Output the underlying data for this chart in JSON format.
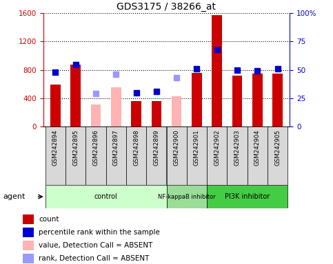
{
  "title": "GDS3175 / 38266_at",
  "samples": [
    "GSM242894",
    "GSM242895",
    "GSM242896",
    "GSM242897",
    "GSM242898",
    "GSM242899",
    "GSM242900",
    "GSM242901",
    "GSM242902",
    "GSM242903",
    "GSM242904",
    "GSM242905"
  ],
  "count_values": [
    590,
    880,
    null,
    null,
    360,
    365,
    null,
    760,
    1570,
    720,
    750,
    745
  ],
  "absent_value_bars": [
    null,
    null,
    310,
    560,
    null,
    null,
    430,
    null,
    null,
    null,
    null,
    null
  ],
  "rank_values_present": [
    48,
    55,
    null,
    null,
    30,
    31,
    null,
    51,
    68,
    50,
    49,
    51
  ],
  "rank_values_absent": [
    null,
    null,
    29,
    46,
    null,
    null,
    43,
    null,
    null,
    null,
    null,
    null
  ],
  "bar_color_present": "#cc0000",
  "bar_color_absent_value": "#ffb3b3",
  "dot_color_present": "#0000cc",
  "dot_color_absent_rank": "#9999ff",
  "ylim_left": [
    0,
    1600
  ],
  "ylim_right": [
    0,
    100
  ],
  "yticks_left": [
    0,
    400,
    800,
    1200,
    1600
  ],
  "yticks_right": [
    0,
    25,
    50,
    75,
    100
  ],
  "groups": [
    {
      "label": "control",
      "start": 0,
      "end": 6,
      "color": "#ccffcc"
    },
    {
      "label": "NF-kappaB inhibitor",
      "start": 6,
      "end": 8,
      "color": "#99dd99"
    },
    {
      "label": "PI3K inhibitor",
      "start": 8,
      "end": 12,
      "color": "#44cc44"
    }
  ],
  "legend_items": [
    {
      "label": "count",
      "color": "#cc0000"
    },
    {
      "label": "percentile rank within the sample",
      "color": "#0000cc"
    },
    {
      "label": "value, Detection Call = ABSENT",
      "color": "#ffb3b3"
    },
    {
      "label": "rank, Detection Call = ABSENT",
      "color": "#9999ff"
    }
  ],
  "agent_label": "agent",
  "left_axis_color": "#cc0000",
  "right_axis_color": "#0000cc",
  "bar_width": 0.5,
  "rank_marker_size": 6
}
